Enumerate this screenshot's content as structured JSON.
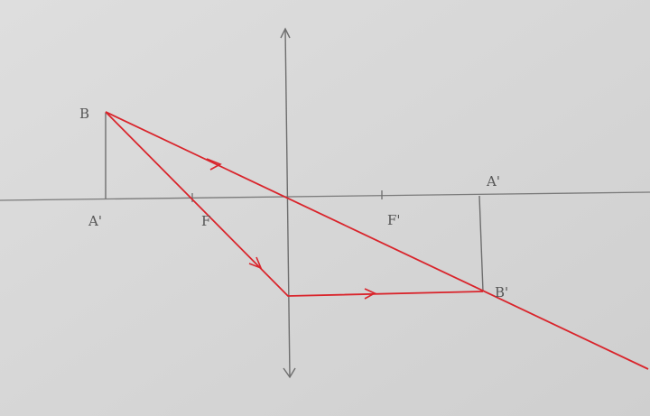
{
  "labels": {
    "object_top": "B",
    "object_base": "A'",
    "focal_object": "F",
    "focal_image": "F'",
    "image_base": "A'",
    "image_top": "B'"
  },
  "colors": {
    "paper": "#d9d9d9",
    "pencil": "#6e6e6e",
    "ray": "#d9242b"
  }
}
